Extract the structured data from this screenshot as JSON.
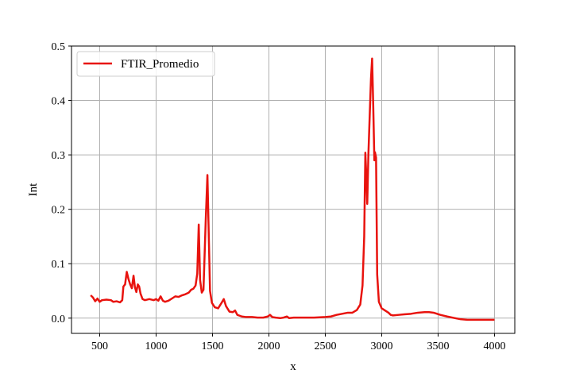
{
  "chart_data": {
    "type": "line",
    "xlabel": "x",
    "ylabel": "Int",
    "xlim": [
      250,
      4180
    ],
    "ylim": [
      -0.028,
      0.5
    ],
    "xticks": [
      500,
      1000,
      1500,
      2000,
      2500,
      3000,
      3500,
      4000
    ],
    "xtick_labels": [
      "500",
      "1000",
      "1500",
      "2000",
      "2500",
      "3000",
      "3500",
      "4000"
    ],
    "yticks": [
      0.0,
      0.1,
      0.2,
      0.3,
      0.4,
      0.5
    ],
    "ytick_labels": [
      "0.0",
      "0.1",
      "0.2",
      "0.3",
      "0.4",
      "0.5"
    ],
    "grid": true,
    "legend_position": "top-left",
    "series": [
      {
        "name": "FTIR_Promedio",
        "color": "#e8130e",
        "points": [
          [
            420,
            0.042
          ],
          [
            440,
            0.038
          ],
          [
            460,
            0.031
          ],
          [
            480,
            0.036
          ],
          [
            500,
            0.03
          ],
          [
            520,
            0.033
          ],
          [
            560,
            0.034
          ],
          [
            600,
            0.033
          ],
          [
            620,
            0.03
          ],
          [
            650,
            0.031
          ],
          [
            680,
            0.029
          ],
          [
            700,
            0.033
          ],
          [
            710,
            0.058
          ],
          [
            725,
            0.062
          ],
          [
            740,
            0.085
          ],
          [
            755,
            0.072
          ],
          [
            770,
            0.062
          ],
          [
            785,
            0.055
          ],
          [
            800,
            0.078
          ],
          [
            812,
            0.057
          ],
          [
            825,
            0.048
          ],
          [
            838,
            0.062
          ],
          [
            850,
            0.058
          ],
          [
            862,
            0.045
          ],
          [
            880,
            0.035
          ],
          [
            900,
            0.033
          ],
          [
            940,
            0.035
          ],
          [
            980,
            0.033
          ],
          [
            1000,
            0.035
          ],
          [
            1020,
            0.032
          ],
          [
            1040,
            0.04
          ],
          [
            1060,
            0.032
          ],
          [
            1080,
            0.03
          ],
          [
            1110,
            0.032
          ],
          [
            1140,
            0.036
          ],
          [
            1170,
            0.04
          ],
          [
            1200,
            0.039
          ],
          [
            1230,
            0.042
          ],
          [
            1260,
            0.044
          ],
          [
            1290,
            0.047
          ],
          [
            1310,
            0.052
          ],
          [
            1330,
            0.054
          ],
          [
            1350,
            0.06
          ],
          [
            1365,
            0.082
          ],
          [
            1378,
            0.172
          ],
          [
            1390,
            0.07
          ],
          [
            1405,
            0.047
          ],
          [
            1420,
            0.052
          ],
          [
            1440,
            0.18
          ],
          [
            1455,
            0.263
          ],
          [
            1465,
            0.17
          ],
          [
            1478,
            0.05
          ],
          [
            1495,
            0.028
          ],
          [
            1520,
            0.02
          ],
          [
            1550,
            0.018
          ],
          [
            1580,
            0.028
          ],
          [
            1600,
            0.035
          ],
          [
            1620,
            0.022
          ],
          [
            1650,
            0.012
          ],
          [
            1680,
            0.011
          ],
          [
            1700,
            0.014
          ],
          [
            1720,
            0.006
          ],
          [
            1760,
            0.003
          ],
          [
            1800,
            0.002
          ],
          [
            1850,
            0.002
          ],
          [
            1900,
            0.001
          ],
          [
            1950,
            0.001
          ],
          [
            1990,
            0.003
          ],
          [
            2010,
            0.006
          ],
          [
            2030,
            0.002
          ],
          [
            2060,
            0.001
          ],
          [
            2100,
            0.0
          ],
          [
            2130,
            0.001
          ],
          [
            2160,
            0.003
          ],
          [
            2180,
            0.0
          ],
          [
            2220,
            0.001
          ],
          [
            2300,
            0.001
          ],
          [
            2400,
            0.001
          ],
          [
            2500,
            0.002
          ],
          [
            2550,
            0.003
          ],
          [
            2600,
            0.006
          ],
          [
            2650,
            0.008
          ],
          [
            2700,
            0.01
          ],
          [
            2740,
            0.01
          ],
          [
            2780,
            0.015
          ],
          [
            2810,
            0.025
          ],
          [
            2830,
            0.06
          ],
          [
            2845,
            0.15
          ],
          [
            2855,
            0.304
          ],
          [
            2862,
            0.27
          ],
          [
            2872,
            0.21
          ],
          [
            2882,
            0.3
          ],
          [
            2895,
            0.38
          ],
          [
            2905,
            0.44
          ],
          [
            2915,
            0.477
          ],
          [
            2925,
            0.39
          ],
          [
            2935,
            0.29
          ],
          [
            2940,
            0.305
          ],
          [
            2950,
            0.295
          ],
          [
            2960,
            0.08
          ],
          [
            2975,
            0.03
          ],
          [
            3000,
            0.018
          ],
          [
            3030,
            0.014
          ],
          [
            3060,
            0.01
          ],
          [
            3080,
            0.006
          ],
          [
            3100,
            0.005
          ],
          [
            3150,
            0.006
          ],
          [
            3200,
            0.007
          ],
          [
            3260,
            0.008
          ],
          [
            3320,
            0.01
          ],
          [
            3380,
            0.011
          ],
          [
            3420,
            0.011
          ],
          [
            3460,
            0.01
          ],
          [
            3520,
            0.006
          ],
          [
            3580,
            0.003
          ],
          [
            3650,
            0.0
          ],
          [
            3700,
            -0.002
          ],
          [
            3760,
            -0.003
          ],
          [
            3800,
            -0.003
          ],
          [
            3850,
            -0.003
          ],
          [
            3900,
            -0.003
          ],
          [
            3950,
            -0.003
          ],
          [
            4000,
            -0.003
          ]
        ]
      }
    ]
  }
}
